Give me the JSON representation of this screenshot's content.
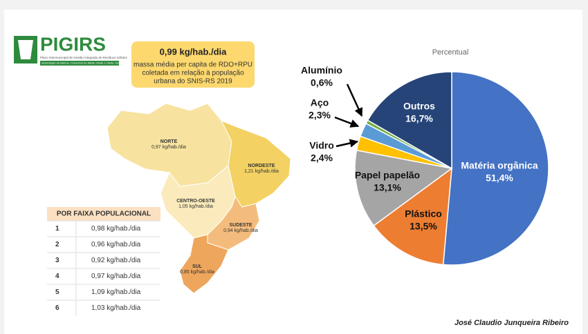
{
  "logo": {
    "title": "PIGIRS",
    "subtitle": "Plano Intermunicipal de Gestão Integrada de Resíduos Sólidos",
    "band": "Associação de Bairros, Consórcio do Médio Oeste e Oeste Joinvilense"
  },
  "highlight": {
    "value": "0,99 kg/hab./dia",
    "lines": [
      "massa média per capita de RDO+RPU",
      "coletada em relação à população",
      "urbana do SNIS-RS 2019"
    ]
  },
  "map": {
    "regions": [
      {
        "name": "NORTE",
        "value": "0,97 kg/hab./dia"
      },
      {
        "name": "NORDESTE",
        "value": "1,21 kg/hab./dia"
      },
      {
        "name": "CENTRO-OESTE",
        "value": "1,05 kg/hab./dia"
      },
      {
        "name": "SUDESTE",
        "value": "0,94 kg/hab./dia"
      },
      {
        "name": "SUL",
        "value": "0,85 kg/hab./dia"
      }
    ]
  },
  "table": {
    "header": "POR FAIXA POPULACIONAL",
    "rows": [
      [
        "1",
        "0,98 kg/hab./dia"
      ],
      [
        "2",
        "0,96 kg/hab./dia"
      ],
      [
        "3",
        "0,92 kg/hab./dia"
      ],
      [
        "4",
        "0,97 kg/hab./dia"
      ],
      [
        "5",
        "1,09 kg/hab./dia"
      ],
      [
        "6",
        "1,03 kg/hab./dia"
      ]
    ]
  },
  "chart_data": {
    "type": "pie",
    "title": "Percentual",
    "categories": [
      "Matéria orgânica",
      "Plástico",
      "Papel papelão",
      "Vidro",
      "Aço",
      "Alumínio",
      "Outros"
    ],
    "values": [
      51.4,
      13.5,
      13.1,
      2.4,
      2.3,
      0.6,
      16.7
    ],
    "value_labels": [
      "51,4%",
      "13,5%",
      "13,1%",
      "2,4%",
      "2,3%",
      "0,6%",
      "16,7%"
    ],
    "colors": [
      "#4472c4",
      "#ed7d31",
      "#a5a5a5",
      "#ffc000",
      "#5b9bd5",
      "#70ad47",
      "#264478"
    ]
  },
  "author": "José Claudio Junqueira Ribeiro"
}
